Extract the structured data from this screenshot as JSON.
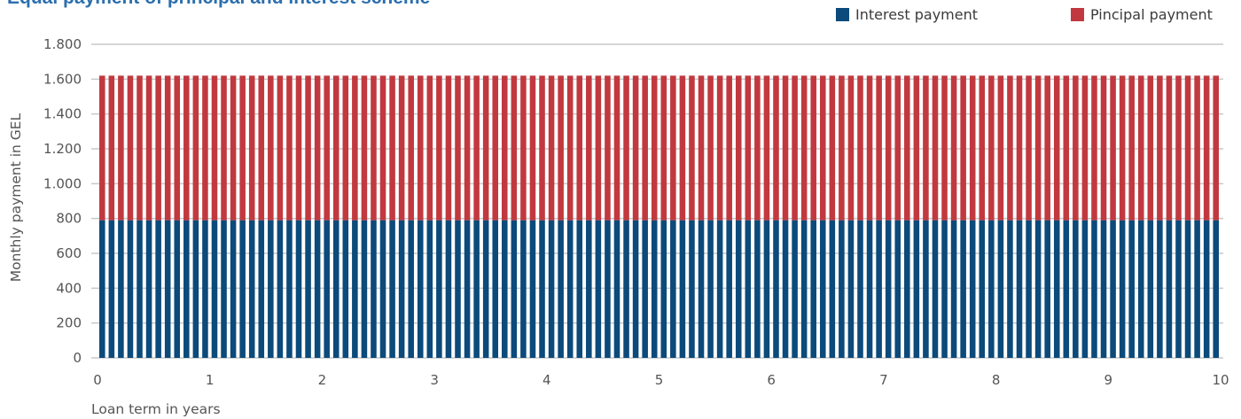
{
  "chart_data": {
    "type": "bar",
    "stacked": true,
    "title": "Equal payment of principal and interest scheme",
    "xlabel": "Loan term in years",
    "ylabel": "Monthly payment in GEL",
    "ylim": [
      0,
      1800
    ],
    "yticks": [
      0,
      200,
      400,
      600,
      800,
      1000,
      1200,
      1400,
      1600,
      1800
    ],
    "ytick_labels": [
      "0",
      "200",
      "400",
      "600",
      "800",
      "1.000",
      "1.200",
      "1.400",
      "1.600",
      "1.800"
    ],
    "xlim": [
      0,
      10
    ],
    "xticks": [
      0,
      1,
      2,
      3,
      4,
      5,
      6,
      7,
      8,
      9,
      10
    ],
    "xtick_labels": [
      "0",
      "1",
      "2",
      "3",
      "4",
      "5",
      "6",
      "7",
      "8",
      "9",
      "10"
    ],
    "bar_count": 120,
    "grid": true,
    "legend_position": "top-right",
    "series": [
      {
        "name": "Interest payment",
        "color": "#0b4a7a",
        "value": 790
      },
      {
        "name": "Pincipal payment",
        "color": "#c1393f",
        "value": 830
      }
    ]
  }
}
